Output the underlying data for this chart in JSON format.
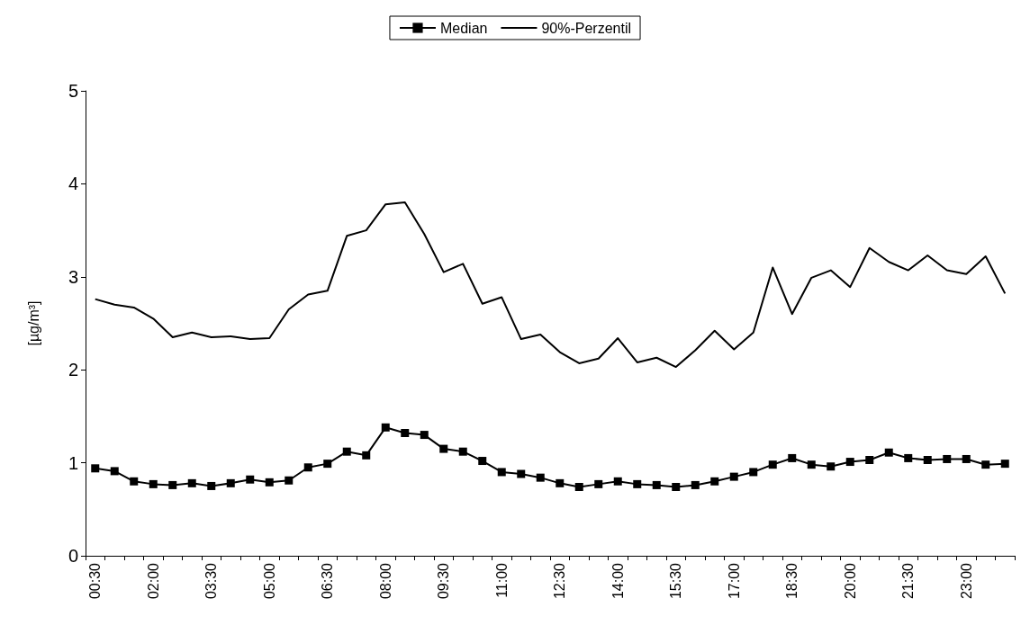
{
  "chart_data": {
    "type": "line",
    "ylabel": "[µg/m³]",
    "categories": [
      "00:30",
      null,
      null,
      "02:00",
      null,
      null,
      "03:30",
      null,
      null,
      "05:00",
      null,
      null,
      "06:30",
      null,
      null,
      "08:00",
      null,
      null,
      "09:30",
      null,
      null,
      "11:00",
      null,
      null,
      "12:30",
      null,
      null,
      "14:00",
      null,
      null,
      "15:30",
      null,
      null,
      "17:00",
      null,
      null,
      "18:30",
      null,
      null,
      "20:00",
      null,
      null,
      "21:30",
      null,
      null,
      "23:00",
      null,
      null
    ],
    "series": [
      {
        "name": "Median",
        "color": "#000000",
        "marker": "square",
        "values": [
          0.94,
          0.91,
          0.8,
          0.77,
          0.76,
          0.78,
          0.75,
          0.78,
          0.82,
          0.79,
          0.81,
          0.95,
          0.99,
          1.12,
          1.08,
          1.38,
          1.32,
          1.3,
          1.15,
          1.12,
          1.02,
          0.9,
          0.88,
          0.84,
          0.78,
          0.74,
          0.77,
          0.8,
          0.77,
          0.76,
          0.74,
          0.76,
          0.8,
          0.85,
          0.9,
          0.98,
          1.05,
          0.98,
          0.96,
          1.01,
          1.03,
          1.11,
          1.05,
          1.03,
          1.04,
          1.04,
          0.98,
          0.99
        ]
      },
      {
        "name": "90%-Perzentil",
        "color": "#000000",
        "marker": "none",
        "values": [
          2.76,
          2.7,
          2.67,
          2.55,
          2.35,
          2.4,
          2.35,
          2.36,
          2.33,
          2.34,
          2.65,
          2.81,
          2.85,
          3.44,
          3.5,
          3.78,
          3.8,
          3.46,
          3.05,
          3.14,
          2.71,
          2.78,
          2.33,
          2.38,
          2.19,
          2.07,
          2.12,
          2.34,
          2.08,
          2.13,
          2.03,
          2.21,
          2.42,
          2.22,
          2.4,
          3.1,
          2.6,
          2.99,
          3.07,
          2.89,
          3.31,
          3.16,
          3.07,
          3.23,
          3.07,
          3.03,
          3.22,
          2.82
        ]
      }
    ],
    "ylim": [
      0,
      5
    ],
    "yticks": [
      0,
      1,
      2,
      3,
      4,
      5
    ],
    "grid": false,
    "legend": "top",
    "line_style": "solid"
  }
}
